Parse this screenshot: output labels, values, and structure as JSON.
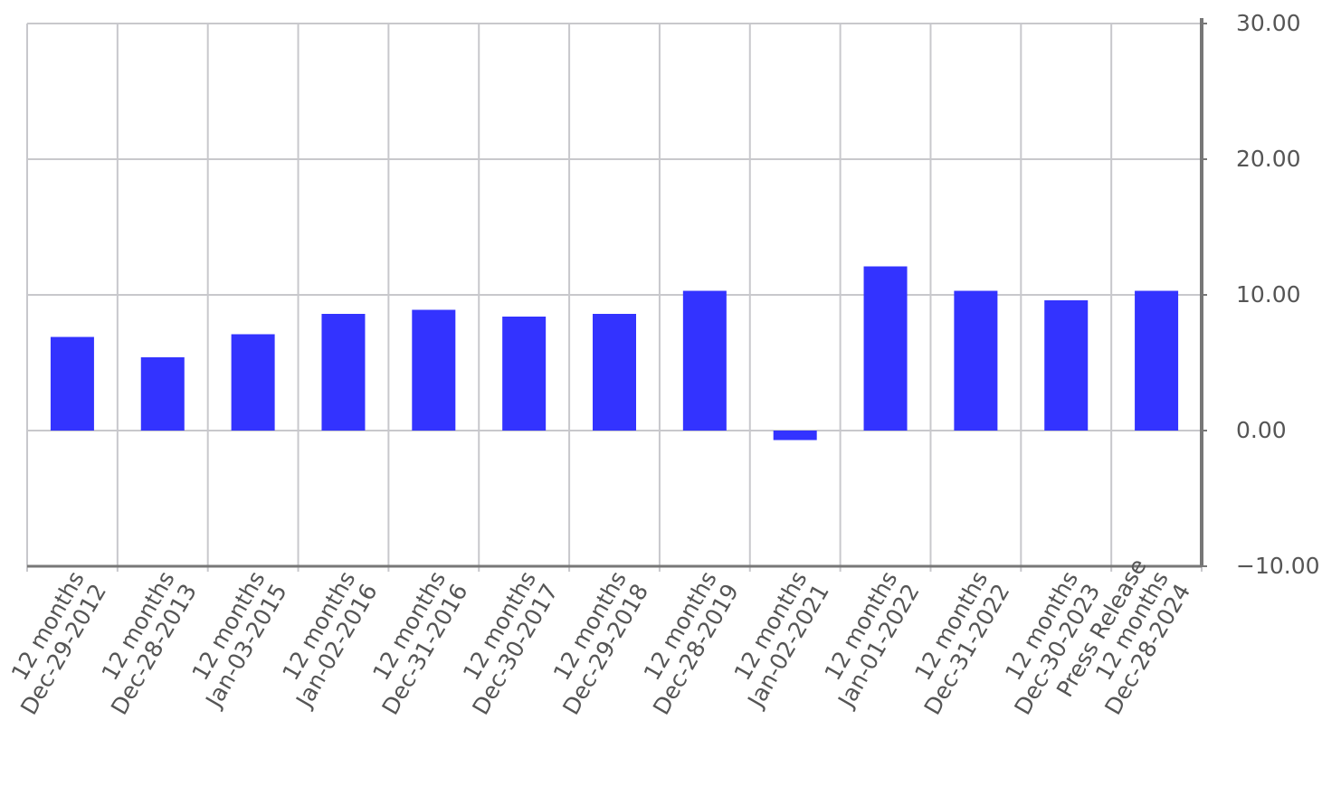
{
  "chart_data": {
    "type": "bar",
    "categories": [
      "12 months\nDec-29-2012",
      "12 months\nDec-28-2013",
      "12 months\nJan-03-2015",
      "12 months\nJan-02-2016",
      "12 months\nDec-31-2016",
      "12 months\nDec-30-2017",
      "12 months\nDec-29-2018",
      "12 months\nDec-28-2019",
      "12 months\nJan-02-2021",
      "12 months\nJan-01-2022",
      "12 months\nDec-31-2022",
      "12 months\nDec-30-2023",
      "Press Release\n12 months\nDec-28-2024"
    ],
    "values": [
      6.9,
      5.4,
      7.1,
      8.6,
      8.9,
      8.4,
      8.6,
      10.3,
      -0.7,
      12.1,
      10.3,
      9.6,
      10.3
    ],
    "color": "#3333ff",
    "ylim": [
      -10,
      30
    ],
    "yticks": [
      {
        "value": -10,
        "label": "−10.00"
      },
      {
        "value": 0,
        "label": "0.00"
      },
      {
        "value": 10,
        "label": "10.00"
      },
      {
        "value": 20,
        "label": "20.00"
      },
      {
        "value": 30,
        "label": "30.00"
      }
    ],
    "grid": true
  }
}
